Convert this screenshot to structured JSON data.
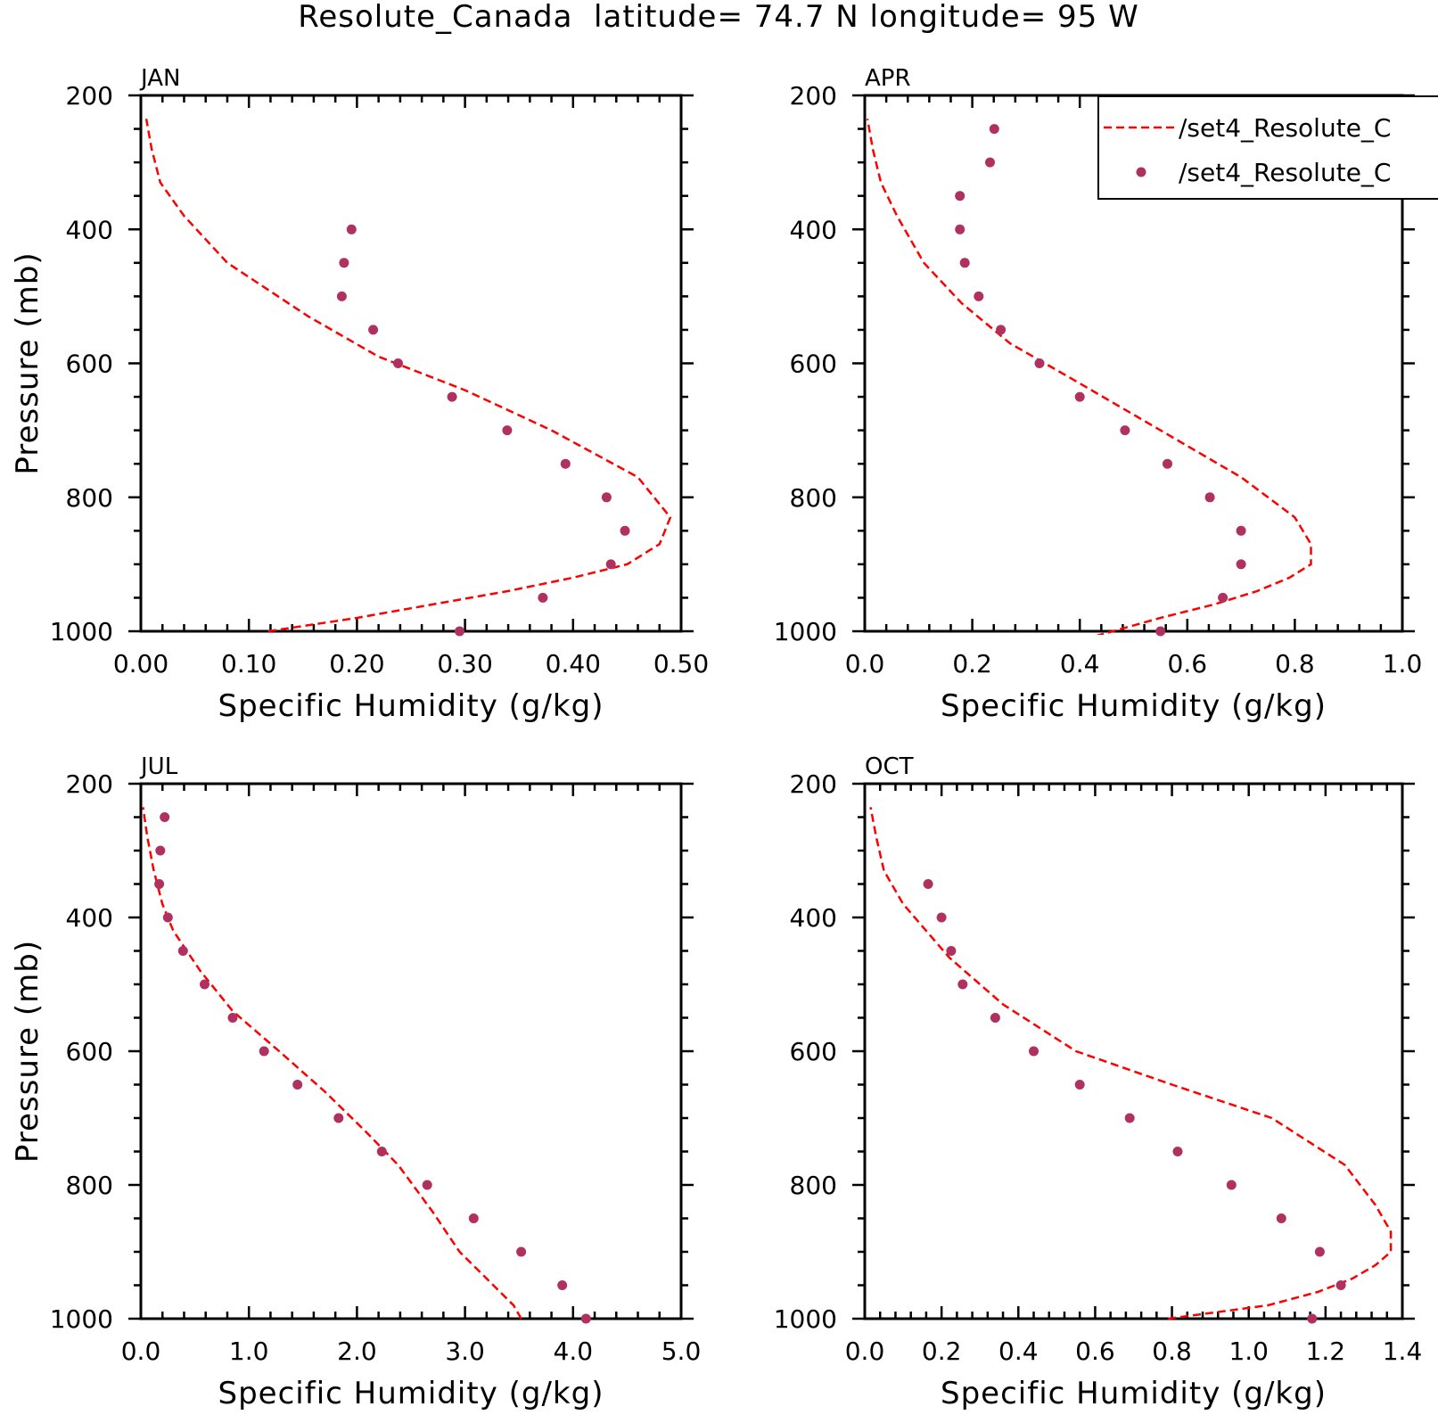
{
  "title": "Resolute_Canada  latitude= 74.7 N longitude= 95 W",
  "colors": {
    "model_line": "#ff0000",
    "obs_marker": "#b03060",
    "frame": "#000000"
  },
  "legend": {
    "entries": [
      {
        "label": "/set4_Resolute_C",
        "style": "dashed-line",
        "series": "model"
      },
      {
        "label": "/set4_Resolute_C",
        "style": "dot",
        "series": "obs"
      }
    ]
  },
  "chart_data": [
    {
      "type": "line",
      "month": "JAN",
      "xlabel": "Specific Humidity (g/kg)",
      "ylabel": "Pressure (mb)",
      "xlim": [
        0,
        0.5
      ],
      "ylim": [
        1000,
        200
      ],
      "xticks": [
        0.0,
        0.1,
        0.2,
        0.3,
        0.4,
        0.5
      ],
      "xtick_labels": [
        "0.00",
        "0.10",
        "0.20",
        "0.30",
        "0.40",
        "0.50"
      ],
      "yticks": [
        200,
        400,
        600,
        800,
        1000
      ],
      "ytick_labels": [
        "200",
        "400",
        "600",
        "800",
        "1000"
      ],
      "series": [
        {
          "name": "/set4_Resolute_C",
          "style": "dashed-line",
          "x": [
            0.118,
            0.2,
            0.27,
            0.34,
            0.4,
            0.45,
            0.48,
            0.49,
            0.46,
            0.38,
            0.3,
            0.22,
            0.155,
            0.08,
            0.04,
            0.018,
            0.01,
            0.005
          ],
          "y": [
            1000,
            980,
            960,
            940,
            920,
            900,
            870,
            830,
            770,
            700,
            640,
            590,
            530,
            450,
            380,
            330,
            280,
            235
          ]
        },
        {
          "name": "/set4_Resolute_C",
          "style": "dot",
          "x": [
            0.295,
            0.372,
            0.435,
            0.448,
            0.431,
            0.393,
            0.339,
            0.288,
            0.238,
            0.215,
            0.186,
            0.188,
            0.195
          ],
          "y": [
            1000,
            950,
            900,
            850,
            800,
            750,
            700,
            650,
            600,
            550,
            500,
            450,
            400
          ]
        }
      ]
    },
    {
      "type": "line",
      "month": "APR",
      "xlabel": "Specific Humidity (g/kg)",
      "ylabel": "",
      "xlim": [
        0,
        1.0
      ],
      "ylim": [
        1000,
        200
      ],
      "xticks": [
        0.0,
        0.2,
        0.4,
        0.6,
        0.8,
        1.0
      ],
      "xtick_labels": [
        "0.0",
        "0.2",
        "0.4",
        "0.6",
        "0.8",
        "1.0"
      ],
      "yticks": [
        200,
        400,
        600,
        800,
        1000
      ],
      "ytick_labels": [
        "200",
        "400",
        "600",
        "800",
        "1000"
      ],
      "series": [
        {
          "name": "/set4_Resolute_C",
          "style": "dashed-line",
          "x": [
            0.43,
            0.55,
            0.65,
            0.73,
            0.79,
            0.83,
            0.83,
            0.8,
            0.7,
            0.55,
            0.4,
            0.27,
            0.18,
            0.11,
            0.06,
            0.03,
            0.015,
            0.005
          ],
          "y": [
            1007,
            980,
            960,
            940,
            920,
            900,
            870,
            830,
            770,
            700,
            630,
            570,
            510,
            450,
            380,
            330,
            280,
            235
          ]
        },
        {
          "name": "/set4_Resolute_C",
          "style": "dot",
          "x": [
            0.55,
            0.666,
            0.7,
            0.7,
            0.642,
            0.563,
            0.484,
            0.4,
            0.325,
            0.253,
            0.212,
            0.186,
            0.177,
            0.177,
            0.233,
            0.241
          ],
          "y": [
            1000,
            950,
            900,
            850,
            800,
            750,
            700,
            650,
            600,
            550,
            500,
            450,
            400,
            350,
            300,
            250
          ]
        }
      ]
    },
    {
      "type": "line",
      "month": "JUL",
      "xlabel": "Specific Humidity (g/kg)",
      "ylabel": "Pressure (mb)",
      "xlim": [
        0,
        5.0
      ],
      "ylim": [
        1000,
        200
      ],
      "xticks": [
        0.0,
        1.0,
        2.0,
        3.0,
        4.0,
        5.0
      ],
      "xtick_labels": [
        "0.0",
        "1.0",
        "2.0",
        "3.0",
        "4.0",
        "5.0"
      ],
      "yticks": [
        200,
        400,
        600,
        800,
        1000
      ],
      "ytick_labels": [
        "200",
        "400",
        "600",
        "800",
        "1000"
      ],
      "series": [
        {
          "name": "/set4_Resolute_C",
          "style": "dashed-line",
          "x": [
            3.52,
            3.45,
            3.2,
            2.95,
            2.7,
            2.38,
            2.08,
            1.7,
            1.28,
            0.85,
            0.55,
            0.3,
            0.2,
            0.12,
            0.06,
            0.02
          ],
          "y": [
            1000,
            980,
            940,
            900,
            840,
            770,
            720,
            660,
            600,
            540,
            480,
            420,
            380,
            330,
            280,
            235
          ]
        },
        {
          "name": "/set4_Resolute_C",
          "style": "dot",
          "x": [
            4.12,
            3.9,
            3.52,
            3.08,
            2.65,
            2.23,
            1.83,
            1.45,
            1.14,
            0.85,
            0.59,
            0.39,
            0.25,
            0.17,
            0.18,
            0.22
          ],
          "y": [
            1000,
            950,
            900,
            850,
            800,
            750,
            700,
            650,
            600,
            550,
            500,
            450,
            400,
            350,
            300,
            250
          ]
        }
      ]
    },
    {
      "type": "line",
      "month": "OCT",
      "xlabel": "Specific Humidity (g/kg)",
      "ylabel": "",
      "xlim": [
        0,
        1.4
      ],
      "ylim": [
        1000,
        200
      ],
      "xticks": [
        0.0,
        0.2,
        0.4,
        0.6,
        0.8,
        1.0,
        1.2,
        1.4
      ],
      "xtick_labels": [
        "0.0",
        "0.2",
        "0.4",
        "0.6",
        "0.8",
        "1.0",
        "1.2",
        "1.4"
      ],
      "yticks": [
        200,
        400,
        600,
        800,
        1000
      ],
      "ytick_labels": [
        "200",
        "400",
        "600",
        "800",
        "1000"
      ],
      "series": [
        {
          "name": "/set4_Resolute_C",
          "style": "dashed-line",
          "x": [
            0.79,
            1.05,
            1.18,
            1.27,
            1.33,
            1.37,
            1.37,
            1.33,
            1.25,
            1.06,
            0.8,
            0.55,
            0.36,
            0.22,
            0.1,
            0.05,
            0.03,
            0.015
          ],
          "y": [
            1000,
            980,
            960,
            940,
            920,
            900,
            870,
            830,
            770,
            700,
            650,
            600,
            530,
            460,
            380,
            330,
            280,
            235
          ]
        },
        {
          "name": "/set4_Resolute_C",
          "style": "dot",
          "x": [
            1.165,
            1.24,
            1.185,
            1.085,
            0.955,
            0.815,
            0.69,
            0.56,
            0.44,
            0.34,
            0.255,
            0.225,
            0.2,
            0.165
          ],
          "y": [
            1000,
            950,
            900,
            850,
            800,
            750,
            700,
            650,
            600,
            550,
            500,
            450,
            400,
            350
          ]
        }
      ]
    }
  ]
}
